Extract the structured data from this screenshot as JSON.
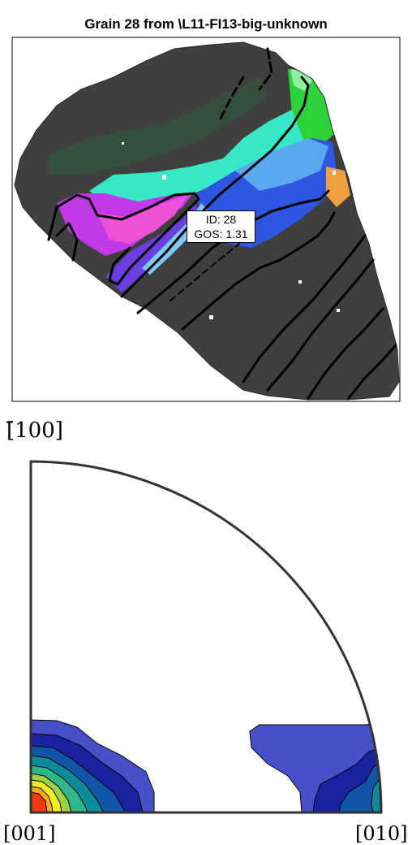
{
  "figure": {
    "title": "Grain 28 from \\L11-FI13-big-unknown"
  },
  "annotation": {
    "id_text": "ID: 28",
    "gos_text": "GOS: 1.31"
  },
  "pole_figure": {
    "top_label": "[̄100]",
    "bottom_left_label": "[001]",
    "bottom_right_label": "[010]"
  },
  "colors": {
    "grain_background": "#3f3f3f",
    "boundary": "#000000",
    "frame": "#000000"
  }
}
